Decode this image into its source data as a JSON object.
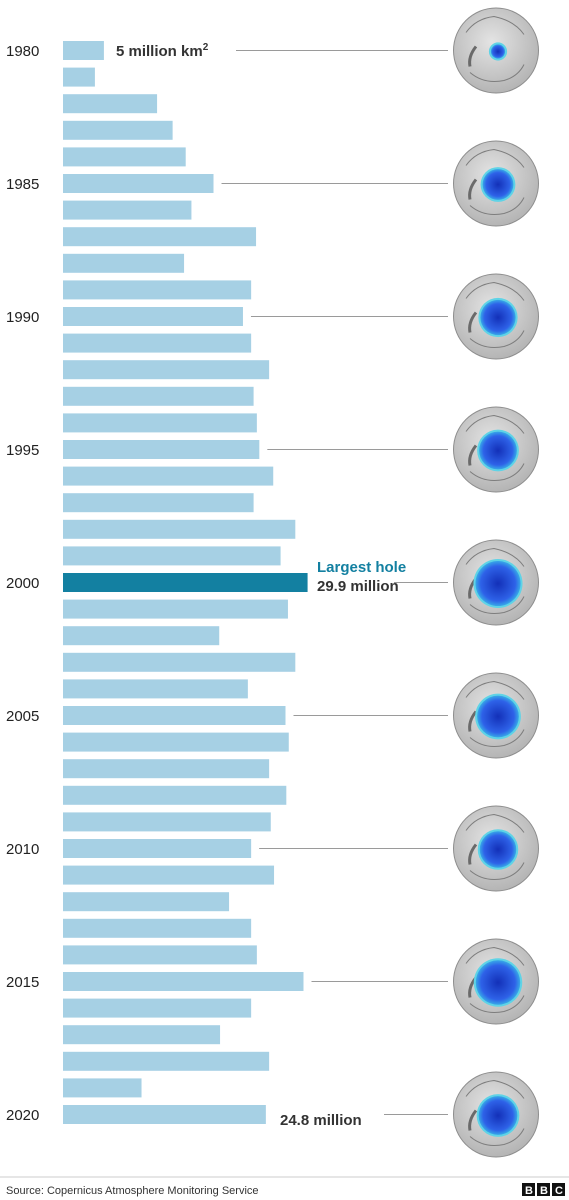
{
  "chart_data": {
    "type": "bar",
    "orientation": "horizontal",
    "unit": "million km²",
    "categories": [
      "1980",
      "1981",
      "1982",
      "1983",
      "1984",
      "1985",
      "1986",
      "1987",
      "1988",
      "1989",
      "1990",
      "1991",
      "1992",
      "1993",
      "1994",
      "1995",
      "1996",
      "1997",
      "1998",
      "1999",
      "2000",
      "2001",
      "2002",
      "2003",
      "2004",
      "2005",
      "2006",
      "2007",
      "2008",
      "2009",
      "2010",
      "2011",
      "2012",
      "2013",
      "2014",
      "2015",
      "2016",
      "2017",
      "2018",
      "2019",
      "2020"
    ],
    "values": [
      5.0,
      3.9,
      11.5,
      13.4,
      15.0,
      18.4,
      15.7,
      23.6,
      14.8,
      23.0,
      22.0,
      23.0,
      25.2,
      23.3,
      23.7,
      24.0,
      25.7,
      23.3,
      28.4,
      26.6,
      29.9,
      27.5,
      19.1,
      28.4,
      22.6,
      27.2,
      27.6,
      25.2,
      27.3,
      25.4,
      23.0,
      25.8,
      20.3,
      23.0,
      23.7,
      29.4,
      23.0,
      19.2,
      25.2,
      9.6,
      24.8
    ],
    "highlight_index": 20,
    "tick_labels": [
      "1980",
      "1985",
      "1990",
      "1995",
      "2000",
      "2005",
      "2010",
      "2015",
      "2020"
    ],
    "annotations": {
      "first_value": "5 million km",
      "first_value_sup": "2",
      "largest_title": "Largest hole",
      "largest_value": "29.9 million",
      "last_value": "24.8 million"
    },
    "colors": {
      "bar": "#a6d0e4",
      "highlight": "#1380a1",
      "globe_land": "#c9c9c9",
      "hole": "#1b4fd6"
    },
    "footer": {
      "source": "Source: Copernicus Atmosphere Monitoring Service",
      "logo": "BBC"
    }
  }
}
